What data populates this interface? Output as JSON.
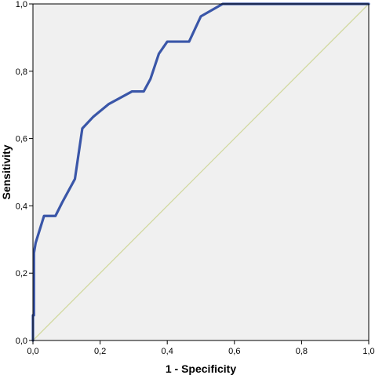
{
  "chart_data": {
    "type": "line",
    "title": "",
    "xlabel": "1 - Specificity",
    "ylabel": "Sensitivity",
    "xlim": [
      0,
      1
    ],
    "ylim": [
      0,
      1
    ],
    "x_ticks": [
      0,
      0.2,
      0.4,
      0.6,
      0.8,
      1.0
    ],
    "y_ticks": [
      0,
      0.2,
      0.4,
      0.6,
      0.8,
      1.0
    ],
    "x_tick_labels": [
      "0,0",
      "0,2",
      "0,4",
      "0,6",
      "0,8",
      "1,0"
    ],
    "y_tick_labels": [
      "0,0",
      "0,2",
      "0,4",
      "0,6",
      "0,8",
      "1,0"
    ],
    "grid": false,
    "legend": "none",
    "plot_background": "#f0f0f0",
    "series": [
      {
        "color": "#3a56a8",
        "x": [
          0.0,
          0.0,
          0.003,
          0.003,
          0.008,
          0.033,
          0.067,
          0.087,
          0.125,
          0.147,
          0.18,
          0.225,
          0.295,
          0.33,
          0.35,
          0.375,
          0.4,
          0.465,
          0.5,
          0.565,
          1.0
        ],
        "y": [
          0.0,
          0.075,
          0.075,
          0.26,
          0.29,
          0.37,
          0.37,
          0.41,
          0.48,
          0.63,
          0.665,
          0.702,
          0.74,
          0.74,
          0.777,
          0.852,
          0.888,
          0.888,
          0.963,
          1.0,
          1.0
        ]
      },
      {
        "color": "#d2d9a0",
        "x": [
          0,
          1
        ],
        "y": [
          0,
          1
        ]
      }
    ]
  }
}
